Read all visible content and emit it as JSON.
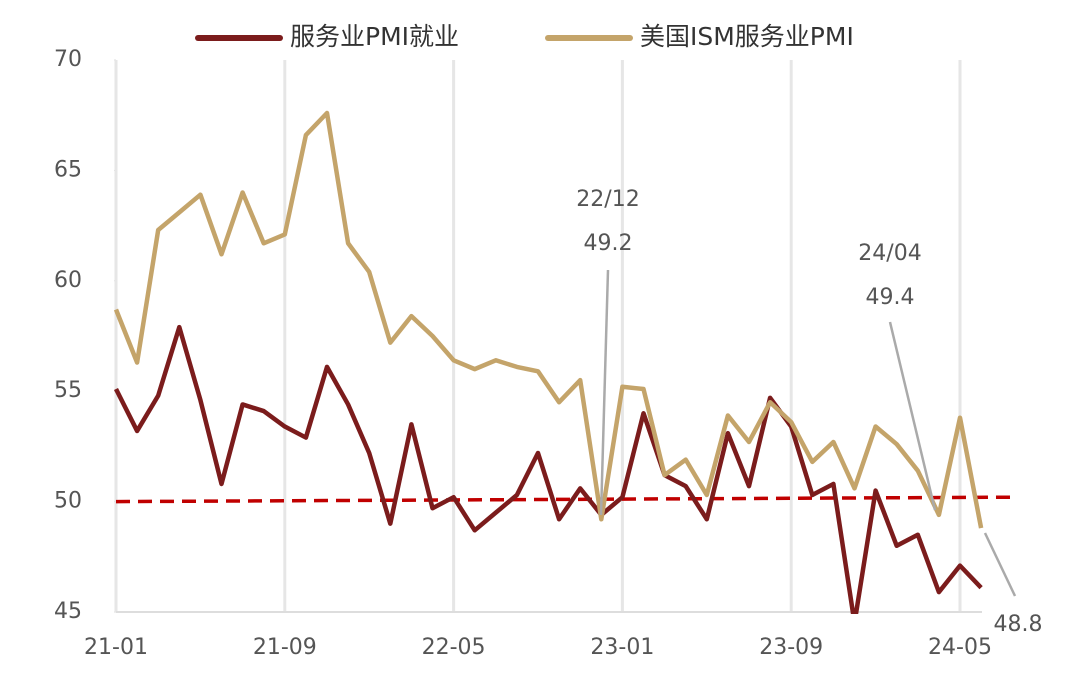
{
  "chart_data": {
    "type": "line",
    "categories": [
      "21-01",
      null,
      null,
      null,
      null,
      null,
      null,
      null,
      "21-09",
      null,
      null,
      null,
      null,
      null,
      null,
      null,
      "22-05",
      null,
      null,
      null,
      null,
      null,
      null,
      null,
      "23-01",
      null,
      null,
      null,
      null,
      null,
      null,
      null,
      "23-09",
      null,
      null,
      null,
      null,
      null,
      null,
      null,
      "24-05",
      null
    ],
    "series": [
      {
        "name": "服务业PMI就业",
        "color": "#7b1c1c",
        "values": [
          55.1,
          53.2,
          54.8,
          57.9,
          54.6,
          50.8,
          54.4,
          54.1,
          53.4,
          52.9,
          56.1,
          54.4,
          52.2,
          49.0,
          53.5,
          49.7,
          50.2,
          48.7,
          49.5,
          50.3,
          52.2,
          49.2,
          50.6,
          49.4,
          50.2,
          54.0,
          51.2,
          50.7,
          49.2,
          53.1,
          50.7,
          54.7,
          53.4,
          50.3,
          50.8,
          44.5,
          50.5,
          48.0,
          48.5,
          45.9,
          47.1,
          46.1
        ]
      },
      {
        "name": "美国ISM服务业PMI",
        "color": "#c4a46a",
        "values": [
          58.7,
          56.3,
          62.3,
          63.1,
          63.9,
          61.2,
          64.0,
          61.7,
          62.1,
          66.6,
          67.6,
          61.7,
          60.4,
          57.2,
          58.4,
          57.5,
          56.4,
          56.0,
          56.4,
          56.1,
          55.9,
          54.5,
          55.5,
          49.2,
          55.2,
          55.1,
          51.2,
          51.9,
          50.3,
          53.9,
          52.7,
          54.5,
          53.6,
          51.8,
          52.7,
          50.6,
          53.4,
          52.6,
          51.4,
          49.4,
          53.8,
          48.8
        ]
      }
    ],
    "reference_line": {
      "start": 50.0,
      "end": 50.2,
      "color": "#c00000"
    },
    "ylim": [
      45,
      70
    ],
    "yticks": [
      45,
      50,
      55,
      60,
      65,
      70
    ],
    "grid": "x",
    "annotations": [
      [
        "22/12",
        "49.2"
      ],
      [
        "24/04",
        "49.4"
      ],
      [
        "48.8"
      ]
    ]
  }
}
